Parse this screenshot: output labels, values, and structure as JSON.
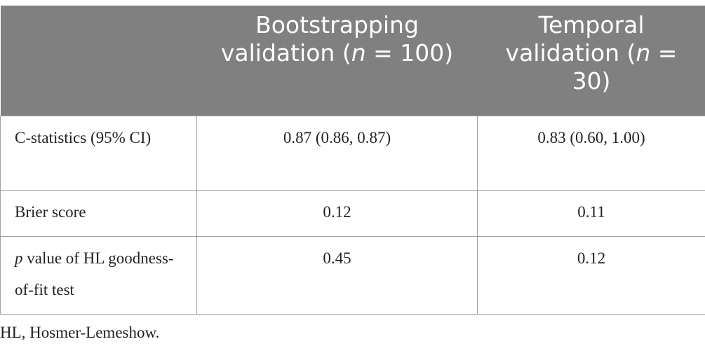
{
  "table": {
    "header": [
      {
        "parts": [
          {
            "text": "Bootstrapping validation ("
          },
          {
            "text": "n",
            "italic": true
          },
          {
            "text": " = 100)"
          }
        ]
      },
      {
        "parts": [
          {
            "text": "Temporal validation ("
          },
          {
            "text": "n",
            "italic": true
          },
          {
            "text": " = 30)"
          }
        ]
      }
    ],
    "rows": [
      [
        "C-statistics (95% CI)",
        "0.87 (0.86, 0.87)",
        "0.83 (0.60, 1.00)"
      ],
      [
        "Brier score",
        "0.12",
        "0.11"
      ],
      [
        {
          "parts": [
            {
              "text": "p",
              "italic": true
            },
            {
              "text": " value of HL goodness-of-fit test"
            }
          ]
        },
        "0.45",
        "0.12"
      ]
    ]
  },
  "footnote": "HL, Hosmer-Lemeshow."
}
